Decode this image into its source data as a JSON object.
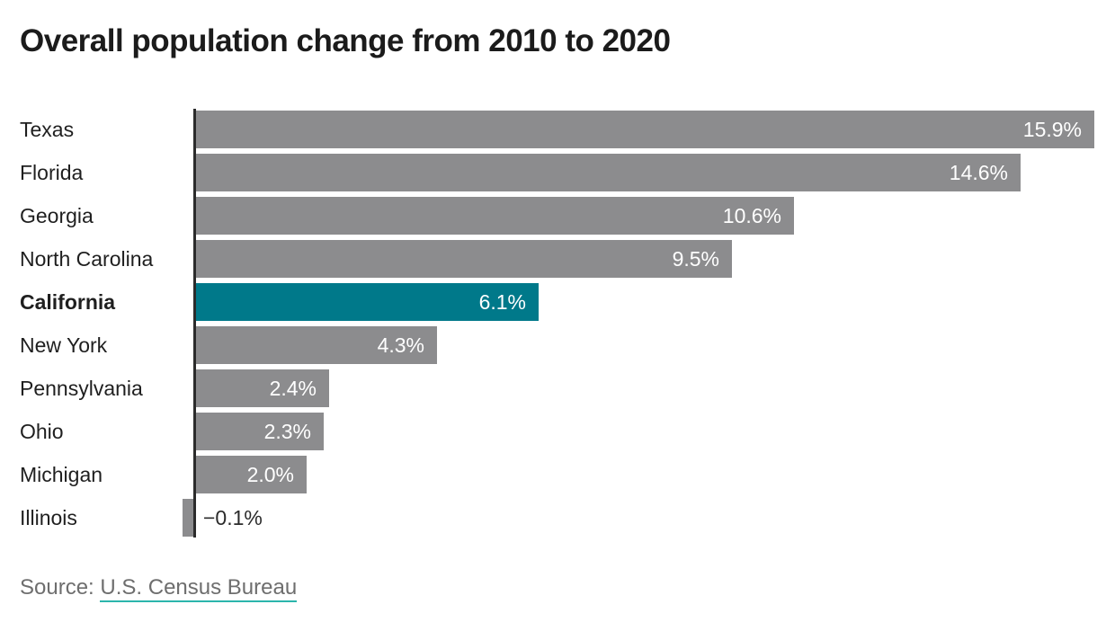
{
  "title": "Overall population change from 2010 to 2020",
  "footer": {
    "source_prefix": "Source: ",
    "source_link": "U.S. Census Bureau"
  },
  "colors": {
    "bar_default": "#8c8c8e",
    "bar_highlight": "#00798a",
    "axis": "#2b2b2b",
    "value_label_inside": "#ffffff",
    "value_label_outside": "#2b2b2b",
    "link_underline": "#2cb5ac",
    "source_text": "#6e6e6e",
    "title_text": "#1b1b1b"
  },
  "chart_data": {
    "type": "bar",
    "orientation": "horizontal",
    "title": "Overall population change from 2010 to 2020",
    "categories": [
      "Texas",
      "Florida",
      "Georgia",
      "North Carolina",
      "California",
      "New York",
      "Pennsylvania",
      "Ohio",
      "Michigan",
      "Illinois"
    ],
    "values": [
      15.9,
      14.6,
      10.6,
      9.5,
      6.1,
      4.3,
      2.4,
      2.3,
      2.0,
      -0.1
    ],
    "value_labels": [
      "15.9%",
      "14.6%",
      "10.6%",
      "9.5%",
      "6.1%",
      "4.3%",
      "2.4%",
      "2.3%",
      "2.0%",
      "−0.1%"
    ],
    "highlighted_category": "California",
    "xlabel": "",
    "ylabel": "",
    "xlim": [
      -0.5,
      16.3
    ],
    "grid": false,
    "legend": false
  }
}
